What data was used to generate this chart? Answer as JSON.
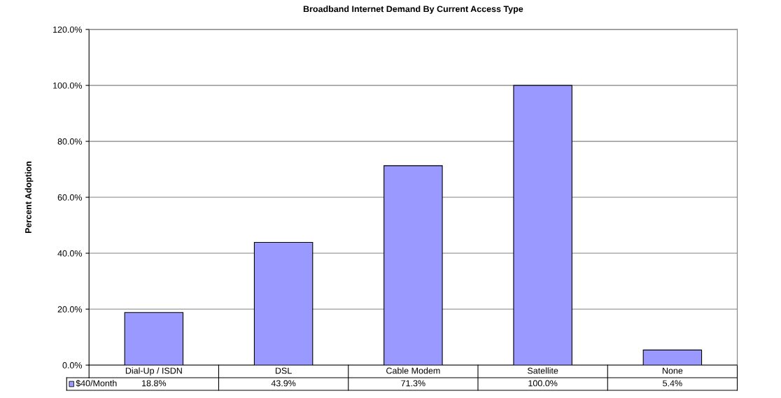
{
  "chart_data": {
    "type": "bar",
    "title": "Broadband Internet Demand By Current Access Type",
    "ylabel": "Percent Adoption",
    "categories": [
      "Dial-Up / ISDN",
      "DSL",
      "Cable Modem",
      "Satellite",
      "None"
    ],
    "series": [
      {
        "name": "$40/Month",
        "color": "#9999ff",
        "values": [
          18.8,
          43.9,
          71.3,
          100.0,
          5.4
        ],
        "value_labels": [
          "18.8%",
          "43.9%",
          "71.3%",
          "100.0%",
          "5.4%"
        ]
      }
    ],
    "ylim": [
      0,
      120
    ],
    "yticks": [
      {
        "value": 0,
        "label": "0.0%"
      },
      {
        "value": 20,
        "label": "20.0%"
      },
      {
        "value": 40,
        "label": "40.0%"
      },
      {
        "value": 60,
        "label": "60.0%"
      },
      {
        "value": 80,
        "label": "80.0%"
      },
      {
        "value": 100,
        "label": "100.0%"
      },
      {
        "value": 120,
        "label": "120.0%"
      }
    ],
    "grid": "y",
    "legend": "bottom"
  }
}
